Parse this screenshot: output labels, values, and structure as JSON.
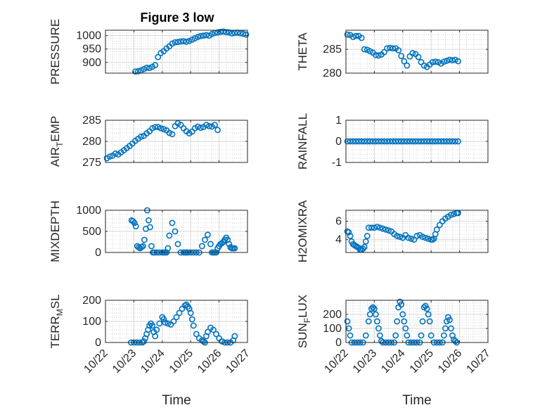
{
  "figure": {
    "title": "Figure 3 low"
  },
  "style": {
    "marker_color": "#0072BD",
    "axis_color": "#262626",
    "grid_color": "#c8c8c8"
  },
  "chart_data": [
    {
      "type": "scatter",
      "ylabel": "PRESSURE",
      "ylabel_sub": "",
      "ylabel_tail": "",
      "title": "Figure 3 low",
      "xlim": [
        "10/22",
        "10/27"
      ],
      "ylim": [
        860,
        1020
      ],
      "yticks": [
        "900",
        "950",
        "1000"
      ],
      "yticks_values": [
        900,
        950,
        1000
      ],
      "xticks": [],
      "xlabel": "",
      "grid": true,
      "x_day": [
        1.05,
        1.15,
        1.25,
        1.35,
        1.45,
        1.55,
        1.65,
        1.75,
        1.85,
        1.95,
        2.05,
        2.15,
        2.25,
        2.35,
        2.45,
        2.55,
        2.65,
        2.75,
        2.85,
        2.95,
        3.05,
        3.15,
        3.25,
        3.35,
        3.45,
        3.55,
        3.65,
        3.75,
        3.85,
        3.95,
        4.05,
        4.15,
        4.25,
        4.35,
        4.45,
        4.55,
        4.65,
        4.75,
        4.85,
        4.95
      ],
      "y": [
        866,
        867,
        870,
        875,
        880,
        879,
        884,
        890,
        920,
        935,
        942,
        952,
        960,
        970,
        975,
        976,
        978,
        979,
        977,
        980,
        985,
        990,
        995,
        998,
        1000,
        1002,
        1000,
        1006,
        1010,
        1012,
        1014,
        1015,
        1013,
        1012,
        1008,
        1010,
        1011,
        1009,
        1007,
        1004
      ]
    },
    {
      "type": "scatter",
      "ylabel": "THETA",
      "ylabel_sub": "",
      "ylabel_tail": "",
      "xlim": [
        "10/22",
        "10/27"
      ],
      "ylim": [
        280,
        289
      ],
      "yticks": [
        "280",
        "285"
      ],
      "yticks_values": [
        280,
        285
      ],
      "xticks": [],
      "xlabel": "",
      "grid": true,
      "x_day": [
        0.05,
        0.15,
        0.25,
        0.35,
        0.45,
        0.55,
        0.65,
        0.75,
        0.85,
        0.95,
        1.05,
        1.15,
        1.25,
        1.35,
        1.45,
        1.55,
        1.65,
        1.75,
        1.85,
        1.95,
        2.05,
        2.15,
        2.25,
        2.35,
        2.45,
        2.55,
        2.65,
        2.75,
        2.85,
        2.95,
        3.05,
        3.15,
        3.25,
        3.35,
        3.45,
        3.55,
        3.65,
        3.75,
        3.85,
        3.95
      ],
      "y": [
        288.1,
        288.0,
        287.6,
        287.8,
        287.8,
        287.4,
        285.0,
        284.9,
        284.6,
        284.3,
        283.8,
        283.7,
        283.9,
        284.4,
        285.2,
        285.3,
        285.2,
        285.2,
        284.8,
        283.6,
        282.5,
        281.6,
        283.5,
        284.2,
        284.0,
        283.4,
        282.3,
        281.6,
        281.3,
        281.8,
        282.3,
        282.4,
        282.3,
        282.0,
        282.4,
        282.6,
        282.8,
        282.7,
        282.8,
        282.5
      ]
    },
    {
      "type": "scatter",
      "ylabel": "AIR",
      "ylabel_sub": "T",
      "ylabel_tail": "EMP",
      "xlim": [
        "10/22",
        "10/27"
      ],
      "ylim": [
        275,
        285
      ],
      "yticks": [
        "275",
        "280",
        "285"
      ],
      "yticks_values": [
        275,
        280,
        285
      ],
      "xticks": [],
      "xlabel": "",
      "grid": true,
      "x_day": [
        0.05,
        0.15,
        0.25,
        0.35,
        0.45,
        0.55,
        0.65,
        0.75,
        0.85,
        0.95,
        1.05,
        1.15,
        1.25,
        1.35,
        1.45,
        1.55,
        1.65,
        1.75,
        1.85,
        1.95,
        2.05,
        2.15,
        2.25,
        2.35,
        2.45,
        2.55,
        2.65,
        2.75,
        2.85,
        2.95,
        3.05,
        3.15,
        3.25,
        3.35,
        3.45,
        3.55,
        3.65,
        3.75,
        3.85,
        3.95
      ],
      "y": [
        276.0,
        276.4,
        276.6,
        277.1,
        276.9,
        277.4,
        277.9,
        278.4,
        278.9,
        279.5,
        280.1,
        280.6,
        281.1,
        281.3,
        281.9,
        282.4,
        283.1,
        283.4,
        283.4,
        283.1,
        282.9,
        282.6,
        282.0,
        281.7,
        283.6,
        284.3,
        283.9,
        283.1,
        282.4,
        281.9,
        282.3,
        283.1,
        283.5,
        283.2,
        283.4,
        283.9,
        283.6,
        283.5,
        283.9,
        282.7
      ]
    },
    {
      "type": "scatter",
      "ylabel": "RAINFALL",
      "ylabel_sub": "",
      "ylabel_tail": "",
      "xlim": [
        "10/22",
        "10/27"
      ],
      "ylim": [
        -1,
        1
      ],
      "yticks": [
        "-1",
        "0",
        "1"
      ],
      "yticks_values": [
        -1,
        0,
        1
      ],
      "xticks": [],
      "xlabel": "",
      "grid": true,
      "x_day": [
        0.05,
        0.15,
        0.25,
        0.35,
        0.45,
        0.55,
        0.65,
        0.75,
        0.85,
        0.95,
        1.05,
        1.15,
        1.25,
        1.35,
        1.45,
        1.55,
        1.65,
        1.75,
        1.85,
        1.95,
        2.05,
        2.15,
        2.25,
        2.35,
        2.45,
        2.55,
        2.65,
        2.75,
        2.85,
        2.95,
        3.05,
        3.15,
        3.25,
        3.35,
        3.45,
        3.55,
        3.65,
        3.75,
        3.85,
        3.95
      ],
      "y": [
        0,
        0,
        0,
        0,
        0,
        0,
        0,
        0,
        0,
        0,
        0,
        0,
        0,
        0,
        0,
        0,
        0,
        0,
        0,
        0,
        0,
        0,
        0,
        0,
        0,
        0,
        0,
        0,
        0,
        0,
        0,
        0,
        0,
        0,
        0,
        0,
        0,
        0,
        0,
        0
      ]
    },
    {
      "type": "scatter",
      "ylabel": "MIXDEPTH",
      "ylabel_sub": "",
      "ylabel_tail": "",
      "xlim": [
        "10/22",
        "10/27"
      ],
      "ylim": [
        0,
        1000
      ],
      "yticks": [
        "0",
        "500",
        "1000"
      ],
      "yticks_values": [
        0,
        500,
        1000
      ],
      "xticks": [],
      "xlabel": "",
      "grid": true,
      "x_day": [
        0.92,
        0.97,
        1.02,
        1.07,
        1.12,
        1.17,
        1.22,
        1.27,
        1.32,
        1.37,
        1.42,
        1.47,
        1.52,
        1.57,
        1.62,
        1.67,
        1.72,
        1.8,
        1.9,
        2.0,
        2.05,
        2.1,
        2.15,
        2.2,
        2.25,
        2.35,
        2.45,
        2.55,
        2.65,
        2.75,
        2.8,
        2.85,
        2.9,
        3.0,
        3.1,
        3.2,
        3.3,
        3.4,
        3.5,
        3.6,
        3.7,
        3.75,
        3.8,
        3.85,
        3.9,
        3.95,
        4.0,
        4.05,
        4.1,
        4.15,
        4.2,
        4.25,
        4.3,
        4.35,
        4.4,
        4.45,
        4.5,
        4.55
      ],
      "y": [
        760,
        740,
        700,
        620,
        150,
        120,
        100,
        130,
        150,
        300,
        560,
        1000,
        760,
        600,
        150,
        0,
        0,
        0,
        0,
        0,
        0,
        0,
        0,
        100,
        400,
        700,
        500,
        200,
        0,
        0,
        0,
        0,
        0,
        0,
        0,
        0,
        0,
        150,
        300,
        420,
        200,
        0,
        0,
        0,
        0,
        100,
        150,
        200,
        220,
        250,
        300,
        350,
        300,
        200,
        120,
        100,
        100,
        100
      ]
    },
    {
      "type": "scatter",
      "ylabel": "H2OMIXRA",
      "ylabel_sub": "",
      "ylabel_tail": "",
      "xlim": [
        "10/22",
        "10/27"
      ],
      "ylim": [
        2.6,
        7.2
      ],
      "yticks": [
        "4",
        "6"
      ],
      "yticks_values": [
        4,
        6
      ],
      "xticks": [],
      "xlabel": "",
      "grid": true,
      "x_day": [
        0.05,
        0.1,
        0.15,
        0.2,
        0.25,
        0.3,
        0.35,
        0.4,
        0.45,
        0.5,
        0.55,
        0.6,
        0.65,
        0.7,
        0.75,
        0.8,
        0.9,
        1.0,
        1.1,
        1.2,
        1.3,
        1.4,
        1.5,
        1.6,
        1.7,
        1.8,
        1.9,
        2.0,
        2.1,
        2.2,
        2.3,
        2.4,
        2.5,
        2.6,
        2.7,
        2.8,
        2.9,
        3.0,
        3.05,
        3.1,
        3.15,
        3.2,
        3.3,
        3.4,
        3.5,
        3.6,
        3.7,
        3.8,
        3.9,
        3.95
      ],
      "y": [
        4.9,
        4.8,
        4.4,
        3.8,
        3.5,
        3.4,
        3.3,
        3.2,
        3.1,
        2.9,
        2.9,
        3.0,
        3.2,
        3.8,
        4.4,
        5.3,
        5.3,
        5.3,
        5.4,
        5.3,
        5.2,
        5.1,
        5.0,
        4.9,
        4.6,
        4.4,
        4.3,
        4.2,
        4.5,
        4.2,
        4.1,
        4.0,
        4.4,
        4.5,
        4.3,
        4.2,
        4.1,
        4.0,
        4.0,
        4.1,
        4.6,
        5.1,
        5.6,
        6.0,
        6.3,
        6.5,
        6.7,
        6.8,
        6.9,
        6.9
      ]
    },
    {
      "type": "scatter",
      "ylabel": "TERR",
      "ylabel_sub": "M",
      "ylabel_tail": "SL",
      "xlim": [
        "10/22",
        "10/27"
      ],
      "ylim": [
        0,
        200
      ],
      "yticks": [
        "0",
        "100",
        "200"
      ],
      "yticks_values": [
        0,
        100,
        200
      ],
      "xticks": [
        "10/22",
        "10/23",
        "10/24",
        "10/25",
        "10/26",
        "10/27"
      ],
      "xlabel": "Time",
      "grid": true,
      "x_day": [
        0.9,
        1.0,
        1.1,
        1.2,
        1.3,
        1.35,
        1.4,
        1.45,
        1.5,
        1.55,
        1.6,
        1.65,
        1.7,
        1.75,
        1.8,
        1.9,
        2.0,
        2.05,
        2.1,
        2.2,
        2.3,
        2.4,
        2.5,
        2.6,
        2.7,
        2.8,
        2.85,
        2.9,
        2.95,
        3.0,
        3.05,
        3.1,
        3.2,
        3.3,
        3.4,
        3.45,
        3.5,
        3.55,
        3.6,
        3.7,
        3.8,
        3.9,
        4.0,
        4.1,
        4.2,
        4.3,
        4.4,
        4.5,
        4.55
      ],
      "y": [
        0,
        0,
        0,
        0,
        0,
        5,
        20,
        40,
        60,
        80,
        90,
        80,
        50,
        30,
        60,
        90,
        120,
        110,
        95,
        90,
        85,
        100,
        120,
        140,
        160,
        175,
        180,
        170,
        160,
        140,
        110,
        80,
        40,
        20,
        10,
        5,
        0,
        30,
        50,
        70,
        60,
        40,
        20,
        5,
        0,
        0,
        0,
        10,
        30
      ]
    },
    {
      "type": "scatter",
      "ylabel": "SUN",
      "ylabel_sub": "F",
      "ylabel_tail": "LUX",
      "xlim": [
        "10/22",
        "10/27"
      ],
      "ylim": [
        0,
        300
      ],
      "yticks": [
        "0",
        "100",
        "200"
      ],
      "yticks_values": [
        0,
        100,
        200
      ],
      "xticks": [
        "10/22",
        "10/23",
        "10/24",
        "10/25",
        "10/26",
        "10/27"
      ],
      "xlabel": "Time",
      "grid": true,
      "x_day": [
        0.05,
        0.1,
        0.15,
        0.2,
        0.3,
        0.4,
        0.5,
        0.6,
        0.7,
        0.8,
        0.85,
        0.9,
        0.95,
        1.0,
        1.05,
        1.1,
        1.15,
        1.2,
        1.25,
        1.3,
        1.4,
        1.5,
        1.6,
        1.7,
        1.75,
        1.8,
        1.85,
        1.9,
        1.95,
        2.0,
        2.05,
        2.1,
        2.15,
        2.2,
        2.3,
        2.4,
        2.5,
        2.6,
        2.65,
        2.7,
        2.75,
        2.8,
        2.85,
        2.9,
        2.95,
        3.0,
        3.1,
        3.2,
        3.3,
        3.4,
        3.45,
        3.5,
        3.55,
        3.6,
        3.65,
        3.7,
        3.75,
        3.8,
        3.85,
        3.9
      ],
      "y": [
        150,
        100,
        50,
        0,
        0,
        0,
        0,
        0,
        50,
        150,
        200,
        240,
        250,
        240,
        200,
        150,
        100,
        50,
        10,
        0,
        0,
        0,
        0,
        0,
        50,
        150,
        250,
        290,
        270,
        200,
        150,
        100,
        50,
        0,
        0,
        0,
        0,
        0,
        50,
        150,
        250,
        260,
        240,
        200,
        150,
        50,
        0,
        0,
        0,
        0,
        50,
        100,
        150,
        180,
        160,
        100,
        50,
        20,
        10,
        0
      ]
    }
  ]
}
